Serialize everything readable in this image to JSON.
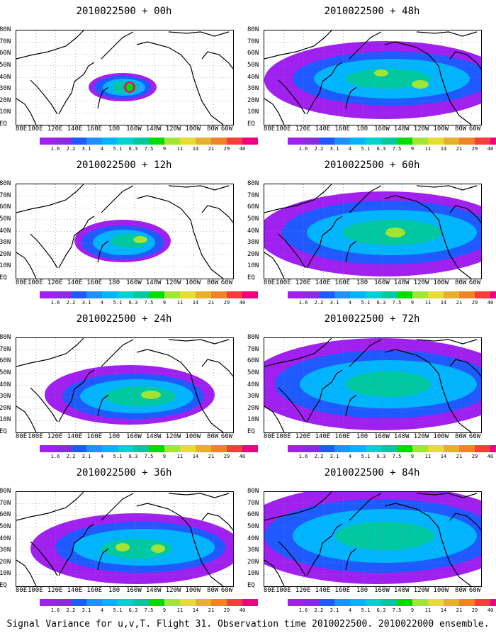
{
  "chart_data": {
    "type": "heatmap",
    "footer": "Signal Variance for u,v,T. Flight 31. Observation time 2010022500. 2010022000 ensemble.",
    "lon_ticks": [
      "80E",
      "100E",
      "120E",
      "140E",
      "160E",
      "180",
      "160W",
      "140W",
      "120W",
      "100W",
      "80W",
      "60W"
    ],
    "lat_ticks": [
      "80N",
      "70N",
      "60N",
      "50N",
      "40N",
      "30N",
      "20N",
      "10N",
      "EQ"
    ],
    "colorbar_labels": [
      "1.6",
      "2.2",
      "3.1",
      "4",
      "5.1",
      "6.3",
      "7.5",
      "9",
      "11",
      "14",
      "21",
      "29",
      "40"
    ],
    "colorbar_colors": [
      "#a020f0",
      "#8a2be2",
      "#1e5aff",
      "#1e90ff",
      "#00b4ff",
      "#00d2d2",
      "#00c8a0",
      "#00dc00",
      "#a0e632",
      "#e6dc32",
      "#e6af2d",
      "#f08228",
      "#fa3c3c",
      "#f00082"
    ],
    "panels": [
      {
        "title": "2010022500 + 00h"
      },
      {
        "title": "2010022500 + 12h"
      },
      {
        "title": "2010022500 + 24h"
      },
      {
        "title": "2010022500 + 36h"
      },
      {
        "title": "2010022500 + 48h"
      },
      {
        "title": "2010022500 + 60h"
      },
      {
        "title": "2010022500 + 72h"
      },
      {
        "title": "2010022500 + 84h"
      }
    ]
  }
}
